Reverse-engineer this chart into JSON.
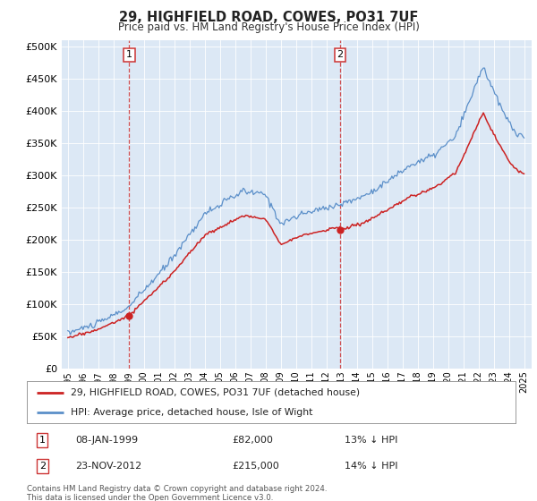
{
  "title": "29, HIGHFIELD ROAD, COWES, PO31 7UF",
  "subtitle": "Price paid vs. HM Land Registry's House Price Index (HPI)",
  "legend_line1": "29, HIGHFIELD ROAD, COWES, PO31 7UF (detached house)",
  "legend_line2": "HPI: Average price, detached house, Isle of Wight",
  "annotation1_date": "08-JAN-1999",
  "annotation1_price": 82000,
  "annotation1_hpi": "13% ↓ HPI",
  "annotation2_date": "23-NOV-2012",
  "annotation2_price": 215000,
  "annotation2_hpi": "14% ↓ HPI",
  "footer": "Contains HM Land Registry data © Crown copyright and database right 2024.\nThis data is licensed under the Open Government Licence v3.0.",
  "sale1_year": 1999.04,
  "sale2_year": 2012.9,
  "sale1_value": 82000,
  "sale2_value": 215000,
  "background_color": "#dce8f5",
  "hpi_line_color": "#5b8fc9",
  "price_line_color": "#cc2222",
  "vline_color": "#cc3333",
  "yticks": [
    0,
    50000,
    100000,
    150000,
    200000,
    250000,
    300000,
    350000,
    400000,
    450000,
    500000
  ]
}
